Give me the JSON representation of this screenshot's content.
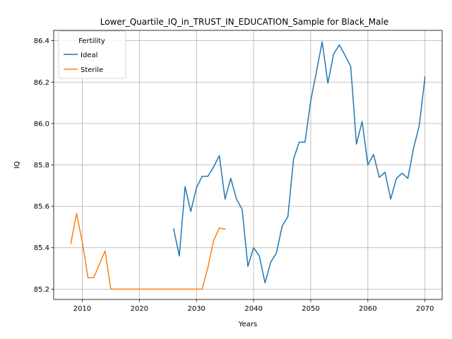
{
  "chart_data": {
    "type": "line",
    "title": "Lower_Quartile_IQ_in_TRUST_IN_EDUCATION_Sample for Black_Male",
    "xlabel": "Years",
    "ylabel": "IQ",
    "xlim": [
      2005,
      2073
    ],
    "ylim": [
      85.15,
      86.45
    ],
    "xticks": [
      2010,
      2020,
      2030,
      2040,
      2050,
      2060,
      2070
    ],
    "yticks": [
      85.2,
      85.4,
      85.6,
      85.8,
      86.0,
      86.2,
      86.4
    ],
    "ytick_labels": [
      "85.2",
      "85.4",
      "85.6",
      "85.8",
      "86.0",
      "86.2",
      "86.4"
    ],
    "grid": true,
    "legend": {
      "title": "Fertility",
      "placement": "top-left"
    },
    "series": [
      {
        "name": "Ideal",
        "color": "#1f77b4",
        "x": [
          2026,
          2027,
          2028,
          2029,
          2030,
          2031,
          2032,
          2033,
          2034,
          2035,
          2036,
          2037,
          2038,
          2039,
          2040,
          2041,
          2042,
          2043,
          2044,
          2045,
          2046,
          2047,
          2048,
          2049,
          2050,
          2051,
          2052,
          2053,
          2054,
          2055,
          2056,
          2057,
          2058,
          2059,
          2060,
          2061,
          2062,
          2063,
          2064,
          2065,
          2066,
          2067,
          2068,
          2069,
          2070
        ],
        "y": [
          85.49,
          85.36,
          85.695,
          85.575,
          85.69,
          85.745,
          85.745,
          85.79,
          85.845,
          85.635,
          85.735,
          85.635,
          85.585,
          85.31,
          85.4,
          85.36,
          85.23,
          85.33,
          85.375,
          85.505,
          85.55,
          85.83,
          85.91,
          85.91,
          86.11,
          86.25,
          86.395,
          86.195,
          86.335,
          86.38,
          86.33,
          86.275,
          85.9,
          86.01,
          85.8,
          85.85,
          85.74,
          85.765,
          85.635,
          85.735,
          85.76,
          85.735,
          85.88,
          85.99,
          86.225
        ]
      },
      {
        "name": "Sterile",
        "color": "#ff7f0e",
        "x": [
          2008,
          2009,
          2010,
          2011,
          2012,
          2013,
          2014,
          2015,
          2016,
          2017,
          2018,
          2019,
          2020,
          2021,
          2022,
          2023,
          2024,
          2025,
          2026,
          2027,
          2028,
          2029,
          2030,
          2031,
          2032,
          2033,
          2034,
          2035
        ],
        "y": [
          85.42,
          85.565,
          85.43,
          85.255,
          85.255,
          85.32,
          85.385,
          85.2,
          85.2,
          85.2,
          85.2,
          85.2,
          85.2,
          85.2,
          85.2,
          85.2,
          85.2,
          85.2,
          85.2,
          85.2,
          85.2,
          85.2,
          85.2,
          85.2,
          85.305,
          85.435,
          85.495,
          85.49
        ]
      }
    ]
  }
}
